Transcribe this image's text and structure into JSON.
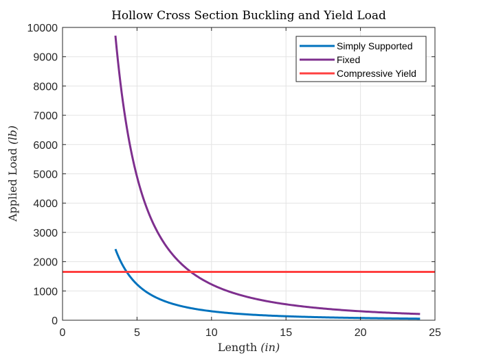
{
  "chart_data": {
    "type": "line",
    "title": "Hollow Cross Section Buckling and Yield Load",
    "xlabel_main": "Length ",
    "xlabel_unit": "(in)",
    "ylabel_main": "Applied Load ",
    "ylabel_unit": "(lb)",
    "xlim": [
      0,
      25
    ],
    "ylim": [
      0,
      10000
    ],
    "xticks": [
      0,
      5,
      10,
      15,
      20,
      25
    ],
    "yticks": [
      0,
      1000,
      2000,
      3000,
      4000,
      5000,
      6000,
      7000,
      8000,
      9000,
      10000
    ],
    "grid": true,
    "legend_position": "top-right",
    "series": [
      {
        "name": "Simply Supported",
        "color": "#0072BD",
        "form": "inverse-square",
        "x_start": 3.55,
        "x_end": 24,
        "y_at_start": 2430,
        "sample_points": [
          [
            3.55,
            2430
          ],
          [
            5,
            1225
          ],
          [
            10,
            306
          ],
          [
            15,
            136
          ],
          [
            20,
            77
          ],
          [
            24,
            53
          ]
        ]
      },
      {
        "name": "Fixed",
        "color": "#7E2F8E",
        "form": "inverse-square",
        "x_start": 3.55,
        "x_end": 24,
        "y_at_start": 9720,
        "sample_points": [
          [
            3.55,
            9720
          ],
          [
            5,
            4900
          ],
          [
            8.6,
            1656
          ],
          [
            10,
            1225
          ],
          [
            15,
            544
          ],
          [
            20,
            306
          ],
          [
            24,
            213
          ]
        ]
      },
      {
        "name": "Compressive Yield",
        "color": "#FF4040",
        "form": "constant",
        "x_start": 0,
        "x_end": 25,
        "value": 1650
      }
    ]
  }
}
